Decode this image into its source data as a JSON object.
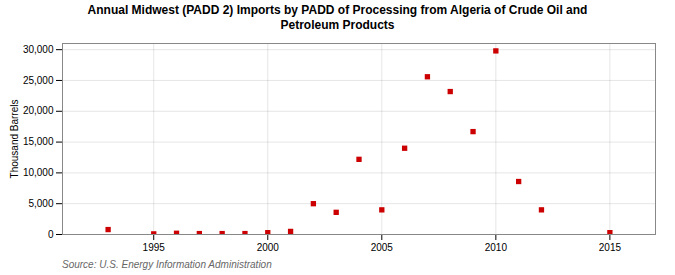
{
  "chart_data": {
    "type": "scatter",
    "title": "Annual Midwest (PADD 2) Imports by PADD of Processing from Algeria of Crude Oil and\nPetroleum Products",
    "ylabel": "Thousand Barrels",
    "annotations": [
      "Source: U.S. Energy Information Administration"
    ],
    "x": [
      1993,
      1995,
      1996,
      1997,
      1998,
      1999,
      2000,
      2001,
      2002,
      2003,
      2004,
      2005,
      2006,
      2007,
      2008,
      2009,
      2010,
      2011,
      2012,
      2015
    ],
    "values": [
      800,
      100,
      200,
      150,
      150,
      150,
      300,
      500,
      5000,
      3600,
      12200,
      4000,
      14000,
      25600,
      23200,
      16700,
      29800,
      8600,
      4000,
      300
    ],
    "color": "#cc0000",
    "marker": "square",
    "xlim": [
      1991,
      2017
    ],
    "ylim": [
      0,
      31000
    ],
    "xticks": [
      1995,
      2000,
      2005,
      2010,
      2015
    ],
    "yticks": [
      0,
      {
        "value": 5000,
        "label": "5,000"
      },
      {
        "value": 10000,
        "label": "10,000"
      },
      {
        "value": 15000,
        "label": "15,000"
      },
      {
        "value": 20000,
        "label": "20,000"
      },
      {
        "value": 25000,
        "label": "25,000"
      },
      {
        "value": 30000,
        "label": "30,000"
      }
    ],
    "grid": true
  }
}
